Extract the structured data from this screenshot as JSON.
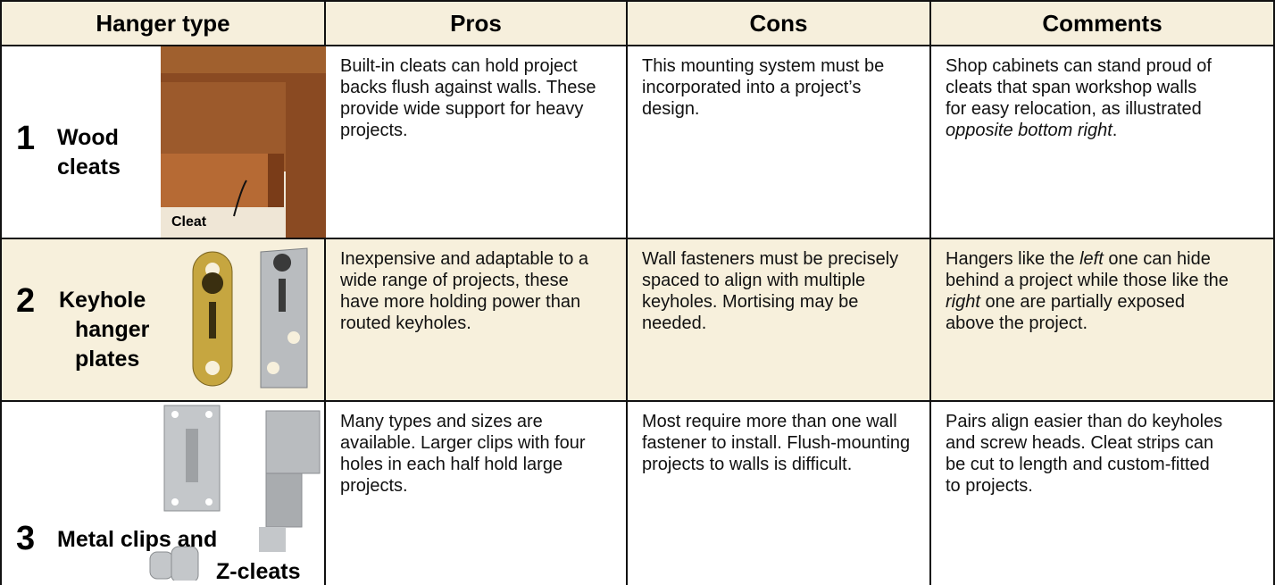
{
  "table": {
    "header": [
      "Hanger type",
      "Pros",
      "Cons",
      "Comments"
    ],
    "rows": [
      {
        "number": "1",
        "name_lines": [
          "Wood",
          "cleats"
        ],
        "image_label": "Cleat",
        "pros": "Built-in cleats can hold project backs flush against walls. These provide wide support for heavy projects.",
        "cons": "This mounting system must be incorporated into a project’s design.",
        "comments": [
          "Shop cabinets can stand proud of cleats that span workshop walls for easy relocation, as illustrated ",
          "opposite bottom right",
          "."
        ]
      },
      {
        "number": "2",
        "name_lines": [
          "Keyhole",
          "hanger",
          "plates"
        ],
        "pros": "Inexpensive and adaptable to a wide range of projects, these have more holding power than routed keyholes.",
        "cons": "Wall fasteners must be precisely spaced to align with multiple keyholes. Mortising may be needed.",
        "comments": [
          "Hangers like the ",
          "left",
          " one can hide behind a project while those like the ",
          "right",
          " one are partially exposed above the project."
        ]
      },
      {
        "number": "3",
        "name_lines": [
          "Metal clips and",
          "Z-cleats"
        ],
        "pros": "Many types and sizes are available. Larger clips with four holes in each half hold large projects.",
        "cons": "Most require more than one wall fastener to install. Flush-mounting projects to walls is difficult.",
        "comments": [
          "Pairs align easier than do keyholes and screw heads. Cleat strips can be cut to length and custom-fitted to projects."
        ]
      }
    ]
  }
}
